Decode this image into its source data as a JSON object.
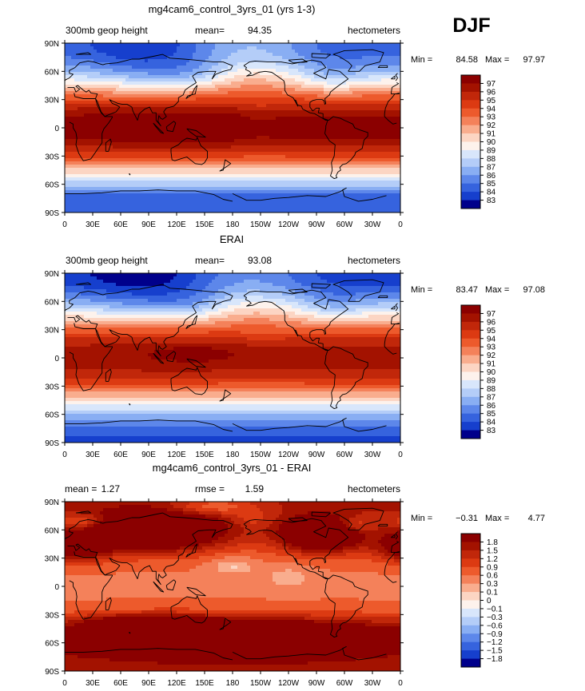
{
  "season": "DJF",
  "chart_data": [
    {
      "type": "heatmap",
      "title": "mg4cam6_control_3yrs_01 (yrs 1-3)",
      "left_label": "300mb geop height",
      "stat1_label": "mean=",
      "stat1_value": "94.35",
      "stat2_label": "",
      "stat2_value": "",
      "units": "hectometers",
      "min_label": "Min =",
      "min_value": "84.58",
      "max_label": "Max =",
      "max_value": "97.97",
      "lat_ticks": [
        "90N",
        "60N",
        "30N",
        "0",
        "30S",
        "60S",
        "90S"
      ],
      "lon_ticks": [
        "0",
        "30E",
        "60E",
        "90E",
        "120E",
        "150E",
        "180",
        "150W",
        "120W",
        "90W",
        "60W",
        "30W",
        "0"
      ],
      "levels": [
        "97",
        "96",
        "95",
        "94",
        "93",
        "92",
        "91",
        "90",
        "89",
        "88",
        "87",
        "86",
        "85",
        "84",
        "83"
      ],
      "colors": [
        "#8b0000",
        "#a31200",
        "#c1270a",
        "#dc3a12",
        "#ed5a2c",
        "#f4815a",
        "#f9ad8e",
        "#fcd5c3",
        "#fdf2ec",
        "#d8e6fb",
        "#b4cdf8",
        "#89aef3",
        "#5d87ea",
        "#3663de",
        "#163fcd",
        "#00008b"
      ],
      "field": "z300_model"
    },
    {
      "type": "heatmap",
      "title": "ERAI",
      "left_label": "300mb geop height",
      "stat1_label": "mean=",
      "stat1_value": "93.08",
      "stat2_label": "",
      "stat2_value": "",
      "units": "hectometers",
      "min_label": "Min =",
      "min_value": "83.47",
      "max_label": "Max =",
      "max_value": "97.08",
      "lat_ticks": [
        "90N",
        "60N",
        "30N",
        "0",
        "30S",
        "60S",
        "90S"
      ],
      "lon_ticks": [
        "0",
        "30E",
        "60E",
        "90E",
        "120E",
        "150E",
        "180",
        "150W",
        "120W",
        "90W",
        "60W",
        "30W",
        "0"
      ],
      "levels": [
        "97",
        "96",
        "95",
        "94",
        "93",
        "92",
        "91",
        "90",
        "89",
        "88",
        "87",
        "86",
        "85",
        "84",
        "83"
      ],
      "colors": [
        "#8b0000",
        "#a31200",
        "#c1270a",
        "#dc3a12",
        "#ed5a2c",
        "#f4815a",
        "#f9ad8e",
        "#fcd5c3",
        "#fdf2ec",
        "#d8e6fb",
        "#b4cdf8",
        "#89aef3",
        "#5d87ea",
        "#3663de",
        "#163fcd",
        "#00008b"
      ],
      "field": "z300_obs"
    },
    {
      "type": "heatmap",
      "title": "mg4cam6_control_3yrs_01 - ERAI",
      "left_label": "",
      "stat1_label": "mean =",
      "stat1_value": "1.27",
      "stat2_label": "rmse =",
      "stat2_value": "1.59",
      "units": "hectometers",
      "min_label": "Min =",
      "min_value": "−0.31",
      "max_label": "Max =",
      "max_value": "4.77",
      "lat_ticks": [
        "90N",
        "60N",
        "30N",
        "0",
        "30S",
        "60S",
        "90S"
      ],
      "lon_ticks": [
        "0",
        "30E",
        "60E",
        "90E",
        "120E",
        "150E",
        "180",
        "150W",
        "120W",
        "90W",
        "60W",
        "30W",
        "0"
      ],
      "levels": [
        "1.8",
        "1.5",
        "1.2",
        "0.9",
        "0.6",
        "0.3",
        "0.1",
        "0",
        "−0.1",
        "−0.3",
        "−0.6",
        "−0.9",
        "−1.2",
        "−1.5",
        "−1.8"
      ],
      "colors": [
        "#8b0000",
        "#a31200",
        "#c1270a",
        "#dc3a12",
        "#ed5a2c",
        "#f4815a",
        "#f9ad8e",
        "#fcd5c3",
        "#fdf2ec",
        "#d8e6fb",
        "#b4cdf8",
        "#89aef3",
        "#5d87ea",
        "#3663de",
        "#163fcd",
        "#00008b"
      ],
      "field": "z300_diff"
    }
  ]
}
